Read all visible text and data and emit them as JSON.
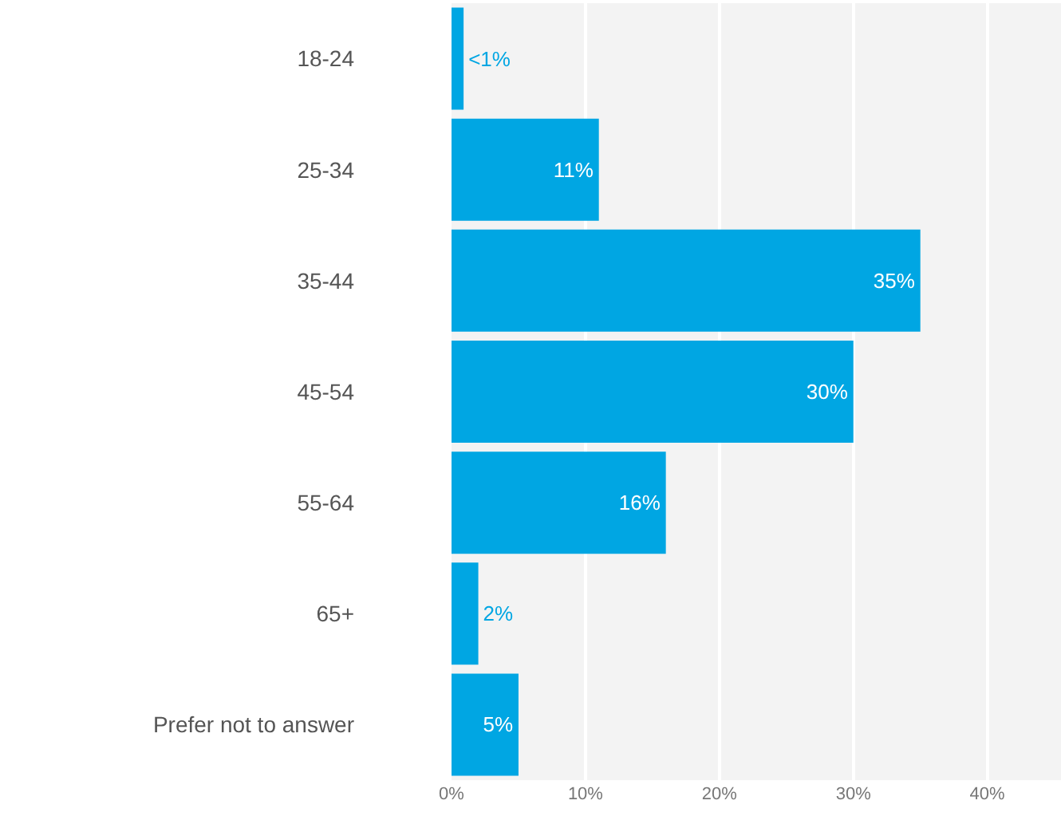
{
  "chart_data": {
    "type": "bar",
    "orientation": "horizontal",
    "categories": [
      "18-24",
      "25-34",
      "35-44",
      "45-54",
      "55-64",
      "65+",
      "Prefer not to answer"
    ],
    "values": [
      0.9,
      11,
      35,
      30,
      16,
      2,
      5
    ],
    "value_labels": [
      "<1%",
      "11%",
      "35%",
      "30%",
      "16%",
      "2%",
      "5%"
    ],
    "color": "#00a6e3",
    "xlim": [
      0,
      45.5
    ],
    "xticks": [
      {
        "value": 0,
        "label": "0%"
      },
      {
        "value": 10,
        "label": "10%"
      },
      {
        "value": 20,
        "label": "20%"
      },
      {
        "value": 30,
        "label": "30%"
      },
      {
        "value": 40,
        "label": "40%"
      }
    ],
    "grid": "x",
    "legend": false
  }
}
